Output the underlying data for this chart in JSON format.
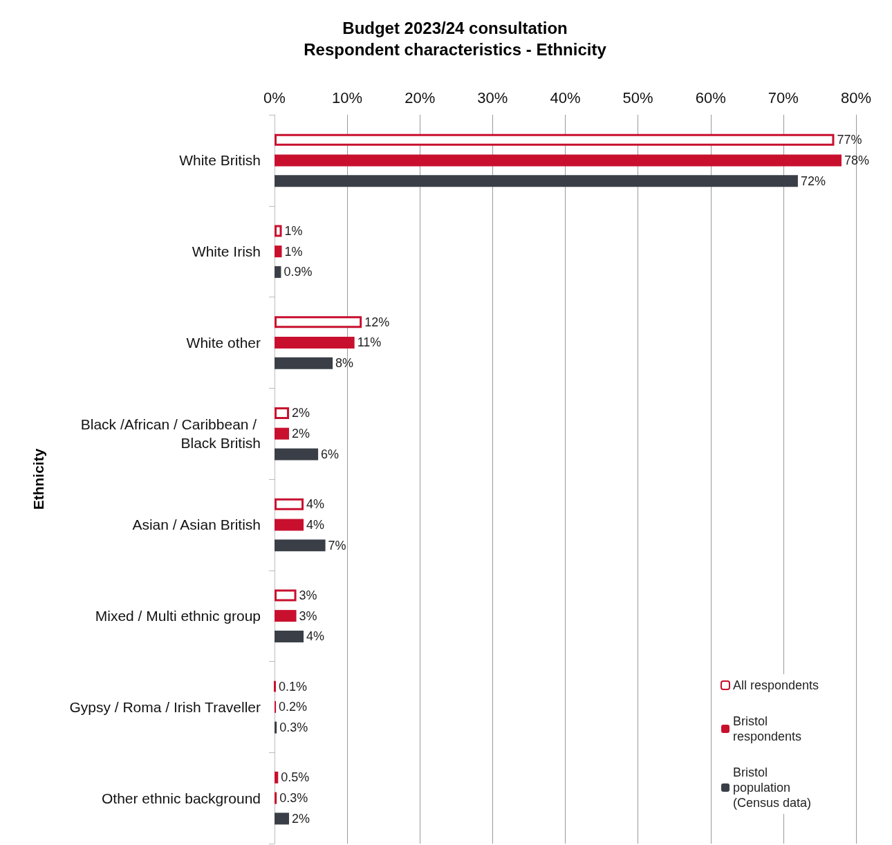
{
  "chart_data": {
    "type": "bar",
    "orientation": "horizontal",
    "title": "Budget 2023/24 consultation\nRespondent characteristics - Ethnicity",
    "ylabel": "Ethnicity",
    "categories": [
      "White British",
      "White Irish",
      "White other",
      "Black /African / Caribbean / Black British",
      "Asian / Asian British",
      "Mixed / Multi ethnic group",
      "Gypsy / Roma / Irish Traveller",
      "Other ethnic background"
    ],
    "series": [
      {
        "name": "All respondents",
        "color": "#c8102e",
        "values": [
          77,
          1,
          12,
          2,
          4,
          3,
          0.1,
          0.5
        ],
        "value_labels": [
          "77%",
          "1%",
          "12%",
          "2%",
          "4%",
          "3%",
          "0.1%",
          "0.5%"
        ]
      },
      {
        "name": "Bristol respondents",
        "color": "#c8102e",
        "values": [
          78,
          1,
          11,
          2,
          4,
          3,
          0.2,
          0.3
        ],
        "value_labels": [
          "78%",
          "1%",
          "11%",
          "2%",
          "4%",
          "3%",
          "0.2%",
          "0.3%"
        ]
      },
      {
        "name": "Bristol population (Census data)",
        "color": "#3a3f47",
        "values": [
          72,
          0.9,
          8,
          6,
          7,
          4,
          0.3,
          2
        ],
        "value_labels": [
          "72%",
          "0.9%",
          "8%",
          "6%",
          "7%",
          "4%",
          "0.3%",
          "2%"
        ]
      }
    ],
    "xlim": [
      0,
      80
    ],
    "xticks": [
      {
        "value": 0,
        "label": "0%"
      },
      {
        "value": 10,
        "label": "10%"
      },
      {
        "value": 20,
        "label": "20%"
      },
      {
        "value": 30,
        "label": "30%"
      },
      {
        "value": 40,
        "label": "40%"
      },
      {
        "value": 50,
        "label": "50%"
      },
      {
        "value": 60,
        "label": "60%"
      },
      {
        "value": 70,
        "label": "70%"
      },
      {
        "value": 80,
        "label": "80%"
      }
    ],
    "grid": "x",
    "legend": "bottom right"
  }
}
